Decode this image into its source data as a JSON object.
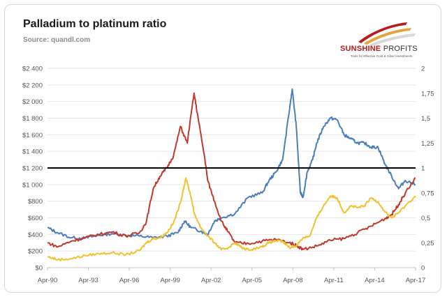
{
  "header": {
    "title": "Palladium to platinum ratio",
    "source": "Source: quandl.com"
  },
  "logo": {
    "name_bold": "SUNSHINE",
    "name_thin": " PROFITS",
    "tagline": "Tools for Effective Gold & Silver Investments"
  },
  "colors": {
    "palladium_usd": "#4a7ebb",
    "platinum_usd": "#c0392b",
    "ratio": "#f2c12e",
    "threshold": "#000000"
  },
  "chart_data": {
    "type": "line",
    "title": "Palladium to platinum ratio",
    "subtitle": "Source: quandl.com",
    "x_ticks": [
      "Apr-90",
      "Apr-93",
      "Apr-96",
      "Apr-99",
      "Apr-02",
      "Apr-05",
      "Apr-08",
      "Apr-11",
      "Apr-14",
      "Apr-17"
    ],
    "y_left_ticks": [
      "$2 400",
      "$2 200",
      "$2 000",
      "$1 800",
      "$1 600",
      "$1 400",
      "$1 200",
      "$1 000",
      "$800",
      "$600",
      "$400",
      "$200",
      "$0"
    ],
    "y_right_ticks": [
      "2",
      "1,75",
      "1,5",
      "1,25",
      "1",
      "0,75",
      "0,5",
      "0,25",
      "0"
    ],
    "x_range": [
      1990.25,
      2017.25
    ],
    "y_left_range": [
      0,
      2400
    ],
    "y_right_range": [
      0,
      2
    ],
    "grid": true,
    "reference_line": {
      "axis": "right",
      "value": 1
    },
    "series": [
      {
        "axis": "left",
        "color": "#4a7ebb",
        "points": [
          [
            1990.25,
            480
          ],
          [
            1991,
            420
          ],
          [
            1992,
            360
          ],
          [
            1993,
            355
          ],
          [
            1994,
            390
          ],
          [
            1995,
            410
          ],
          [
            1996,
            390
          ],
          [
            1997,
            380
          ],
          [
            1998,
            360
          ],
          [
            1999,
            380
          ],
          [
            1999.8,
            420
          ],
          [
            2000.3,
            560
          ],
          [
            2000.8,
            480
          ],
          [
            2001.5,
            440
          ],
          [
            2002,
            400
          ],
          [
            2002.5,
            560
          ],
          [
            2003,
            600
          ],
          [
            2004,
            650
          ],
          [
            2005,
            850
          ],
          [
            2006,
            900
          ],
          [
            2006.5,
            1050
          ],
          [
            2007,
            1150
          ],
          [
            2007.5,
            1300
          ],
          [
            2008,
            1900
          ],
          [
            2008.2,
            2150
          ],
          [
            2008.5,
            1700
          ],
          [
            2008.8,
            900
          ],
          [
            2009,
            850
          ],
          [
            2009.3,
            1150
          ],
          [
            2009.7,
            1300
          ],
          [
            2010,
            1500
          ],
          [
            2010.5,
            1700
          ],
          [
            2011,
            1800
          ],
          [
            2011.5,
            1780
          ],
          [
            2012,
            1600
          ],
          [
            2012.5,
            1550
          ],
          [
            2013,
            1500
          ],
          [
            2013.5,
            1500
          ],
          [
            2014,
            1450
          ],
          [
            2014.5,
            1450
          ],
          [
            2015,
            1250
          ],
          [
            2015.5,
            1100
          ],
          [
            2016,
            950
          ],
          [
            2016.5,
            1050
          ],
          [
            2017.25,
            1000
          ]
        ]
      },
      {
        "axis": "left",
        "color": "#c0392b",
        "points": [
          [
            1990.25,
            300
          ],
          [
            1991,
            250
          ],
          [
            1992,
            320
          ],
          [
            1993,
            360
          ],
          [
            1994,
            400
          ],
          [
            1995,
            430
          ],
          [
            1996,
            380
          ],
          [
            1997,
            420
          ],
          [
            1997.5,
            550
          ],
          [
            1998,
            950
          ],
          [
            1998.5,
            1100
          ],
          [
            1999,
            1200
          ],
          [
            1999.5,
            1350
          ],
          [
            2000,
            1700
          ],
          [
            2000.5,
            1500
          ],
          [
            2001,
            2100
          ],
          [
            2001.3,
            1800
          ],
          [
            2001.8,
            1300
          ],
          [
            2002,
            1050
          ],
          [
            2002.5,
            800
          ],
          [
            2003,
            560
          ],
          [
            2003.5,
            430
          ],
          [
            2004,
            300
          ],
          [
            2005,
            290
          ],
          [
            2006,
            320
          ],
          [
            2007,
            340
          ],
          [
            2008,
            300
          ],
          [
            2008.5,
            270
          ],
          [
            2009,
            220
          ],
          [
            2010,
            260
          ],
          [
            2011,
            330
          ],
          [
            2012,
            350
          ],
          [
            2013,
            420
          ],
          [
            2014,
            500
          ],
          [
            2015,
            590
          ],
          [
            2015.5,
            640
          ],
          [
            2016,
            760
          ],
          [
            2016.5,
            900
          ],
          [
            2017.25,
            1080
          ]
        ]
      },
      {
        "axis": "right",
        "color": "#f2c12e",
        "points": [
          [
            1990.25,
            0.11
          ],
          [
            1991,
            0.08
          ],
          [
            1992,
            0.09
          ],
          [
            1993,
            0.12
          ],
          [
            1994,
            0.14
          ],
          [
            1995,
            0.15
          ],
          [
            1996,
            0.13
          ],
          [
            1997,
            0.17
          ],
          [
            1997.5,
            0.25
          ],
          [
            1998,
            0.29
          ],
          [
            1998.5,
            0.3
          ],
          [
            1999,
            0.35
          ],
          [
            1999.5,
            0.45
          ],
          [
            2000,
            0.65
          ],
          [
            2000.4,
            0.9
          ],
          [
            2000.8,
            0.7
          ],
          [
            2001,
            0.55
          ],
          [
            2001.5,
            0.4
          ],
          [
            2002,
            0.32
          ],
          [
            2002.5,
            0.25
          ],
          [
            2003,
            0.18
          ],
          [
            2003.5,
            0.2
          ],
          [
            2004,
            0.25
          ],
          [
            2004.5,
            0.2
          ],
          [
            2005,
            0.18
          ],
          [
            2006,
            0.21
          ],
          [
            2006.5,
            0.25
          ],
          [
            2007,
            0.27
          ],
          [
            2007.5,
            0.26
          ],
          [
            2008,
            0.2
          ],
          [
            2008.5,
            0.22
          ],
          [
            2009,
            0.3
          ],
          [
            2009.5,
            0.32
          ],
          [
            2010,
            0.5
          ],
          [
            2010.5,
            0.62
          ],
          [
            2011,
            0.72
          ],
          [
            2011.5,
            0.7
          ],
          [
            2012,
            0.55
          ],
          [
            2012.5,
            0.62
          ],
          [
            2013,
            0.6
          ],
          [
            2013.5,
            0.62
          ],
          [
            2014,
            0.7
          ],
          [
            2014.5,
            0.66
          ],
          [
            2015,
            0.56
          ],
          [
            2015.5,
            0.5
          ],
          [
            2016,
            0.55
          ],
          [
            2016.5,
            0.62
          ],
          [
            2017.25,
            0.72
          ]
        ]
      }
    ]
  }
}
